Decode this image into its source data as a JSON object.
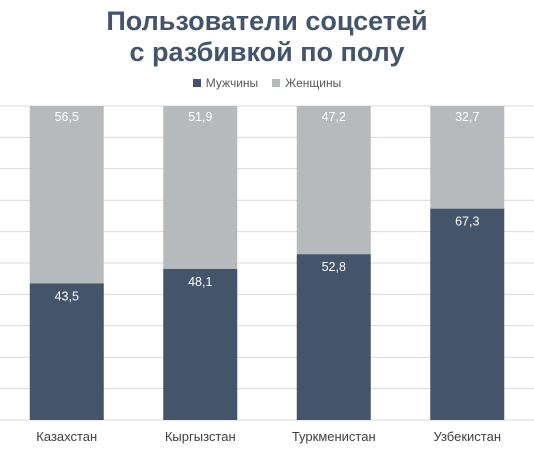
{
  "chart_data": {
    "type": "bar",
    "stacked": true,
    "title_line1": "Пользователи соцсетей",
    "title_line2": "с разбивкой по полу",
    "categories": [
      "Казахстан",
      "Кыргызстан",
      "Туркменистан",
      "Узбекистан"
    ],
    "series": [
      {
        "name": "Мужчины",
        "values": [
          43.5,
          48.1,
          52.8,
          67.3
        ],
        "color": "#44546a"
      },
      {
        "name": "Женщины",
        "values": [
          56.5,
          51.9,
          47.2,
          32.7
        ],
        "color": "#b7babd"
      }
    ],
    "value_labels": {
      "men": [
        "43,5",
        "48,1",
        "52,8",
        "67,3"
      ],
      "women": [
        "56,5",
        "51,9",
        "47,2",
        "32,7"
      ]
    },
    "ylim": [
      0,
      100
    ],
    "grid": true,
    "legend_position": "top"
  }
}
